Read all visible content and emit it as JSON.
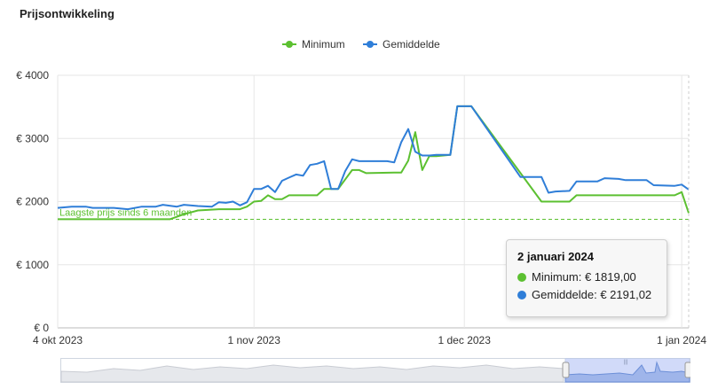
{
  "title": "Prijsontwikkeling",
  "legend": [
    {
      "name": "Minimum",
      "color": "#5cc031"
    },
    {
      "name": "Gemiddelde",
      "color": "#2f7ed8"
    }
  ],
  "tooltip": {
    "date": "2 januari 2024",
    "rows": [
      {
        "name": "Minimum",
        "text": "Minimum: € 1819,00",
        "color": "#5cc031"
      },
      {
        "name": "Gemiddelde",
        "text": "Gemiddelde: € 2191,02",
        "color": "#2f7ed8"
      }
    ]
  },
  "chart_data": {
    "type": "line",
    "title": "",
    "xlabel": "",
    "ylabel": "",
    "ylim": [
      0,
      4000
    ],
    "yticks": [
      {
        "value": 0,
        "label": "€ 0"
      },
      {
        "value": 1000,
        "label": "€ 1000"
      },
      {
        "value": 2000,
        "label": "€ 2000"
      },
      {
        "value": 3000,
        "label": "€ 3000"
      },
      {
        "value": 4000,
        "label": "€ 4000"
      }
    ],
    "xlim": [
      "2023-10-04",
      "2024-01-02"
    ],
    "xticks": [
      {
        "value": "2023-10-04",
        "label": "4 okt 2023"
      },
      {
        "value": "2023-11-01",
        "label": "1 nov 2023"
      },
      {
        "value": "2023-12-01",
        "label": "1 dec 2023"
      },
      {
        "value": "2024-01-01",
        "label": "1 jan 2024"
      }
    ],
    "grid": true,
    "legend_position": "top-center",
    "plot_line": {
      "value": 1720,
      "label": "Laagste prijs sinds 6 maanden",
      "color": "#5cc031",
      "style": "dashed"
    },
    "series": [
      {
        "name": "Minimum",
        "color": "#5cc031",
        "points": [
          [
            "2023-10-04",
            1720
          ],
          [
            "2023-10-08",
            1720
          ],
          [
            "2023-10-12",
            1720
          ],
          [
            "2023-10-16",
            1720
          ],
          [
            "2023-10-20",
            1720
          ],
          [
            "2023-10-22",
            1800
          ],
          [
            "2023-10-24",
            1860
          ],
          [
            "2023-10-27",
            1880
          ],
          [
            "2023-10-30",
            1880
          ],
          [
            "2023-10-31",
            1920
          ],
          [
            "2023-11-01",
            2000
          ],
          [
            "2023-11-02",
            2010
          ],
          [
            "2023-11-03",
            2100
          ],
          [
            "2023-11-04",
            2040
          ],
          [
            "2023-11-05",
            2040
          ],
          [
            "2023-11-06",
            2100
          ],
          [
            "2023-11-10",
            2100
          ],
          [
            "2023-11-11",
            2200
          ],
          [
            "2023-11-12",
            2200
          ],
          [
            "2023-11-13",
            2200
          ],
          [
            "2023-11-15",
            2500
          ],
          [
            "2023-11-16",
            2500
          ],
          [
            "2023-11-17",
            2450
          ],
          [
            "2023-11-21",
            2460
          ],
          [
            "2023-11-22",
            2460
          ],
          [
            "2023-11-23",
            2650
          ],
          [
            "2023-11-24",
            3100
          ],
          [
            "2023-11-25",
            2500
          ],
          [
            "2023-11-26",
            2720
          ],
          [
            "2023-11-27",
            2720
          ],
          [
            "2023-11-28",
            2730
          ],
          [
            "2023-11-29",
            2740
          ],
          [
            "2023-11-30",
            3510
          ],
          [
            "2023-12-02",
            3510
          ],
          [
            "2023-12-12",
            2000
          ],
          [
            "2023-12-16",
            2000
          ],
          [
            "2023-12-17",
            2100
          ],
          [
            "2023-12-31",
            2100
          ],
          [
            "2024-01-01",
            2150
          ],
          [
            "2024-01-02",
            1819
          ]
        ]
      },
      {
        "name": "Gemiddelde",
        "color": "#2f7ed8",
        "points": [
          [
            "2023-10-04",
            1900
          ],
          [
            "2023-10-06",
            1920
          ],
          [
            "2023-10-08",
            1920
          ],
          [
            "2023-10-09",
            1900
          ],
          [
            "2023-10-12",
            1900
          ],
          [
            "2023-10-14",
            1880
          ],
          [
            "2023-10-16",
            1920
          ],
          [
            "2023-10-18",
            1920
          ],
          [
            "2023-10-19",
            1950
          ],
          [
            "2023-10-21",
            1920
          ],
          [
            "2023-10-22",
            1950
          ],
          [
            "2023-10-24",
            1930
          ],
          [
            "2023-10-26",
            1920
          ],
          [
            "2023-10-27",
            1990
          ],
          [
            "2023-10-28",
            1980
          ],
          [
            "2023-10-29",
            2000
          ],
          [
            "2023-10-30",
            1940
          ],
          [
            "2023-10-31",
            1990
          ],
          [
            "2023-11-01",
            2200
          ],
          [
            "2023-11-02",
            2200
          ],
          [
            "2023-11-03",
            2250
          ],
          [
            "2023-11-04",
            2150
          ],
          [
            "2023-11-05",
            2330
          ],
          [
            "2023-11-06",
            2380
          ],
          [
            "2023-11-07",
            2430
          ],
          [
            "2023-11-08",
            2410
          ],
          [
            "2023-11-09",
            2580
          ],
          [
            "2023-11-10",
            2600
          ],
          [
            "2023-11-11",
            2640
          ],
          [
            "2023-11-12",
            2200
          ],
          [
            "2023-11-13",
            2200
          ],
          [
            "2023-11-14",
            2480
          ],
          [
            "2023-11-15",
            2670
          ],
          [
            "2023-11-16",
            2640
          ],
          [
            "2023-11-17",
            2640
          ],
          [
            "2023-11-20",
            2640
          ],
          [
            "2023-11-21",
            2620
          ],
          [
            "2023-11-22",
            2940
          ],
          [
            "2023-11-23",
            3150
          ],
          [
            "2023-11-24",
            2790
          ],
          [
            "2023-11-25",
            2730
          ],
          [
            "2023-11-26",
            2730
          ],
          [
            "2023-11-27",
            2740
          ],
          [
            "2023-11-29",
            2740
          ],
          [
            "2023-11-30",
            3510
          ],
          [
            "2023-12-02",
            3510
          ],
          [
            "2023-12-09",
            2390
          ],
          [
            "2023-12-12",
            2390
          ],
          [
            "2023-12-13",
            2140
          ],
          [
            "2023-12-14",
            2160
          ],
          [
            "2023-12-16",
            2170
          ],
          [
            "2023-12-17",
            2320
          ],
          [
            "2023-12-20",
            2320
          ],
          [
            "2023-12-21",
            2370
          ],
          [
            "2023-12-23",
            2360
          ],
          [
            "2023-12-24",
            2340
          ],
          [
            "2023-12-27",
            2340
          ],
          [
            "2023-12-28",
            2260
          ],
          [
            "2023-12-31",
            2250
          ],
          [
            "2024-01-01",
            2270
          ],
          [
            "2024-01-02",
            2191.02
          ]
        ]
      }
    ]
  }
}
